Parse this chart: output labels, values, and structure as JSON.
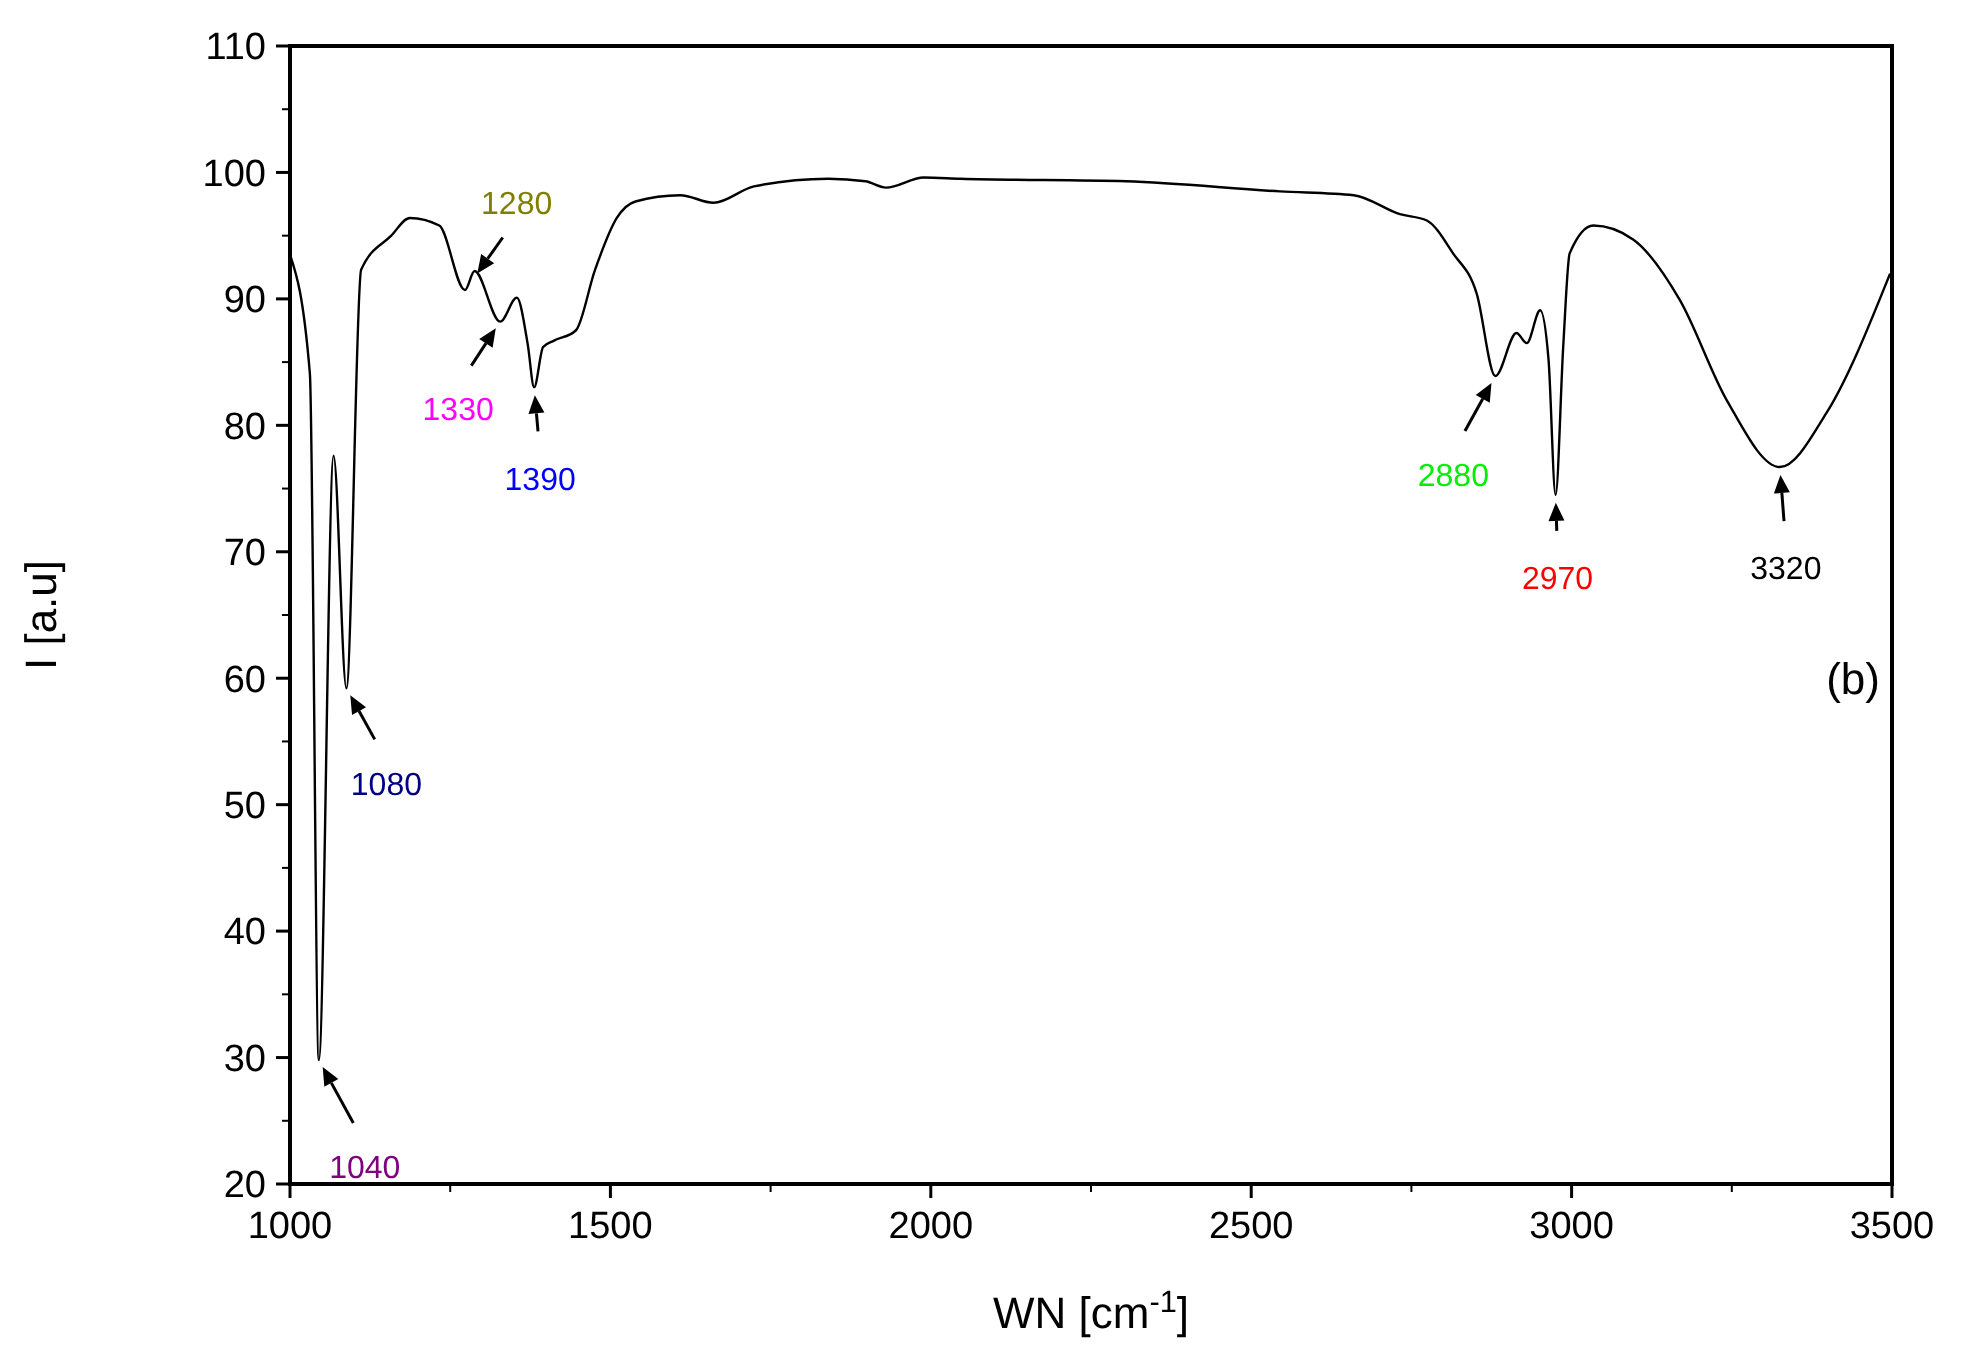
{
  "chart_data": {
    "type": "line",
    "xlabel": "WN [cm$^{-1}$]",
    "ylabel": "I [a.u]",
    "xlim": [
      1000,
      3500
    ],
    "xticks": [
      1000,
      1500,
      2000,
      2500,
      3000,
      3500
    ],
    "ylim": [
      20,
      110
    ],
    "yticks": [
      20,
      30,
      40,
      50,
      60,
      70,
      80,
      90,
      100,
      110
    ],
    "grid": false,
    "marker": "none",
    "line_style": "solid",
    "series": [
      {
        "color": "#000000",
        "x": [
          1000,
          1031,
          1045,
          1068,
          1088,
          1111,
          1158,
          1187,
          1233,
          1273,
          1288,
          1328,
          1354,
          1371,
          1381,
          1395,
          1412,
          1446,
          1476,
          1510,
          1539,
          1609,
          1661,
          1724,
          1840,
          1898,
          1930,
          1989,
          2046,
          2305,
          2545,
          2660,
          2732,
          2774,
          2815,
          2852,
          2881,
          2914,
          2930,
          2951,
          2964,
          2975,
          2987,
          2997,
          3034,
          3096,
          3169,
          3242,
          3325,
          3398,
          3497
        ],
        "values": [
          93.5,
          84.1,
          29.8,
          77.6,
          59.2,
          92.3,
          95,
          96.4,
          95.8,
          90.7,
          92.2,
          88.2,
          90.1,
          86.4,
          83,
          86.2,
          86.7,
          87.5,
          92.3,
          96.4,
          97.7,
          98.2,
          97.6,
          98.9,
          99.5,
          99.3,
          98.8,
          99.6,
          99.5,
          99.3,
          98.5,
          98.2,
          96.7,
          96.2,
          93.6,
          90.4,
          83.9,
          87.3,
          86.5,
          89.1,
          85.2,
          74.5,
          86.3,
          93.6,
          95.8,
          94.7,
          89.9,
          82,
          76.7,
          81,
          92
        ]
      }
    ],
    "annotations": [
      {
        "text": "1040",
        "x": 1045,
        "y": 29.8
      },
      {
        "text": "1080",
        "x": 1088,
        "y": 59.2
      },
      {
        "text": "1280",
        "x": 1285,
        "y": 91.5
      },
      {
        "text": "1330",
        "x": 1328,
        "y": 88.2
      },
      {
        "text": "1390",
        "x": 1381,
        "y": 83
      },
      {
        "text": "2880",
        "x": 2881,
        "y": 83.9
      },
      {
        "text": "2970",
        "x": 2975,
        "y": 74.5
      },
      {
        "text": "3320",
        "x": 3325,
        "y": 76.7
      },
      "(b)"
    ]
  }
}
